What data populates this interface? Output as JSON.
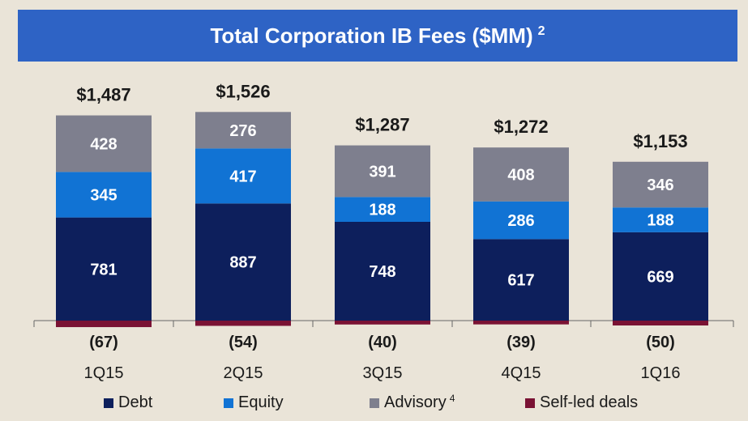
{
  "header": {
    "title": "Total Corporation IB Fees ($MM)",
    "footnote": "2"
  },
  "colors": {
    "debt": "#0D1F5C",
    "equity": "#1173D4",
    "advisory": "#7E7F8E",
    "self_led": "#7A1234",
    "header_bg": "#2E63C5",
    "background": "#EAE4D8"
  },
  "chart_data": {
    "type": "bar",
    "stacked": true,
    "categories": [
      "1Q15",
      "2Q15",
      "3Q15",
      "4Q15",
      "1Q16"
    ],
    "series": [
      {
        "name": "Debt",
        "values": [
          781,
          887,
          748,
          617,
          669
        ]
      },
      {
        "name": "Equity",
        "values": [
          345,
          417,
          188,
          286,
          188
        ]
      },
      {
        "name": "Advisory",
        "values": [
          428,
          276,
          391,
          408,
          346
        ]
      },
      {
        "name": "Self-led deals",
        "values": [
          -67,
          -54,
          -40,
          -39,
          -50
        ]
      }
    ],
    "totals": [
      "$1,487",
      "$1,526",
      "$1,287",
      "$1,272",
      "$1,153"
    ],
    "self_led_labels": [
      "(67)",
      "(54)",
      "(40)",
      "(39)",
      "(50)"
    ],
    "legend_position": "bottom"
  },
  "legend": [
    {
      "label": "Debt",
      "footnote": ""
    },
    {
      "label": "Equity",
      "footnote": ""
    },
    {
      "label": "Advisory",
      "footnote": "4"
    },
    {
      "label": "Self-led deals",
      "footnote": ""
    }
  ]
}
